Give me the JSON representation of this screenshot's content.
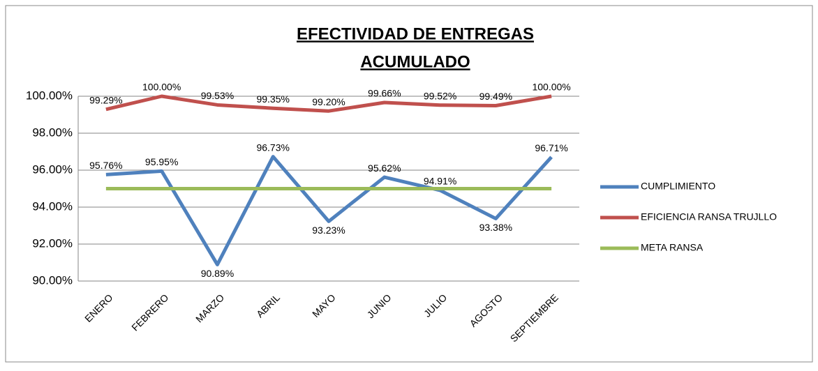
{
  "chart_data": {
    "type": "line",
    "title": [
      "EFECTIVIDAD DE ENTREGAS",
      "ACUMULADO"
    ],
    "categories": [
      "ENERO",
      "FEBRERO",
      "MARZO",
      "ABRIL",
      "MAYO",
      "JUNIO",
      "JULIO",
      "AGOSTO",
      "SEPTIEMBRE"
    ],
    "series": [
      {
        "name": "CUMPLIMIENTO",
        "color": "#4f81bd",
        "values": [
          95.76,
          95.95,
          90.89,
          96.73,
          93.23,
          95.62,
          94.91,
          93.38,
          96.71
        ],
        "value_labels": [
          "95.76%",
          "95.95%",
          "90.89%",
          "96.73%",
          "93.23%",
          "95.62%",
          "94.91%",
          "93.38%",
          "96.71%"
        ]
      },
      {
        "name": "EFICIENCIA RANSA TRUJLLO",
        "color": "#c0504d",
        "values": [
          99.29,
          100.0,
          99.53,
          99.35,
          99.2,
          99.66,
          99.52,
          99.49,
          100.0
        ],
        "value_labels": [
          "99.29%",
          "100.00%",
          "99.53%",
          "99.35%",
          "99.20%",
          "99.66%",
          "99.52%",
          "99.49%",
          "100.00%"
        ]
      },
      {
        "name": "META RANSA",
        "color": "#9bbb59",
        "values": [
          95,
          95,
          95,
          95,
          95,
          95,
          95,
          95,
          95
        ]
      }
    ],
    "ylim": [
      90,
      100
    ],
    "yticks": [
      {
        "value": 90,
        "label": "90.00%"
      },
      {
        "value": 92,
        "label": "92.00%"
      },
      {
        "value": 94,
        "label": "94.00%"
      },
      {
        "value": 96,
        "label": "96.00%"
      },
      {
        "value": 98,
        "label": "98.00%"
      },
      {
        "value": 100,
        "label": "100.00%"
      }
    ],
    "grid": true,
    "legend": "right"
  }
}
